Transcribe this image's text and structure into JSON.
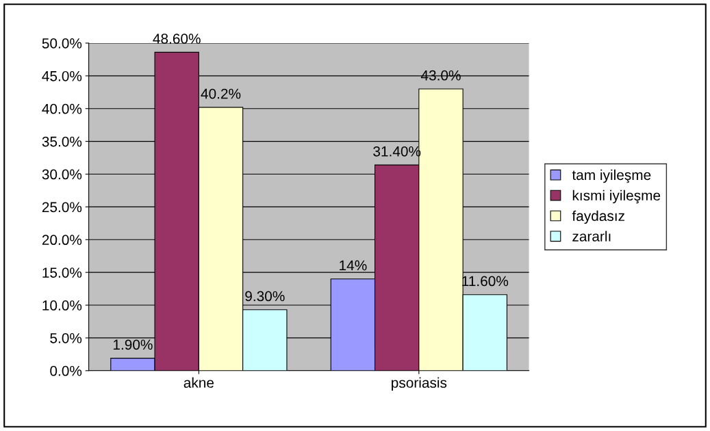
{
  "chart_data": {
    "type": "bar",
    "categories": [
      "akne",
      "psoriasis"
    ],
    "series": [
      {
        "name": "tam iyileşme",
        "color": "#9999ff",
        "values": [
          1.9,
          14
        ],
        "value_labels": [
          "1.90%",
          "14%"
        ]
      },
      {
        "name": "kısmi iyileşme",
        "color": "#993366",
        "values": [
          48.6,
          31.4
        ],
        "value_labels": [
          "48.60%",
          "31.40%"
        ]
      },
      {
        "name": "faydasız",
        "color": "#ffffcc",
        "values": [
          40.2,
          43.0
        ],
        "value_labels": [
          "40.2%",
          "43.0%"
        ]
      },
      {
        "name": "zararlı",
        "color": "#ccffff",
        "values": [
          9.3,
          11.6
        ],
        "value_labels": [
          "9.30%",
          "11.60%"
        ]
      }
    ],
    "ylim": [
      0,
      50
    ],
    "yticks": [
      {
        "value": 0,
        "label": "0.0%"
      },
      {
        "value": 5,
        "label": "5.0%"
      },
      {
        "value": 10,
        "label": "10.0%"
      },
      {
        "value": 15,
        "label": "15.0%"
      },
      {
        "value": 20,
        "label": "20.0%"
      },
      {
        "value": 25,
        "label": "25.0%"
      },
      {
        "value": 30,
        "label": "30.0%"
      },
      {
        "value": 35,
        "label": "35.0%"
      },
      {
        "value": 40,
        "label": "40.0%"
      },
      {
        "value": 45,
        "label": "45.0%"
      },
      {
        "value": 50,
        "label": "50.0%"
      }
    ],
    "grid": "y",
    "legend": "right"
  }
}
